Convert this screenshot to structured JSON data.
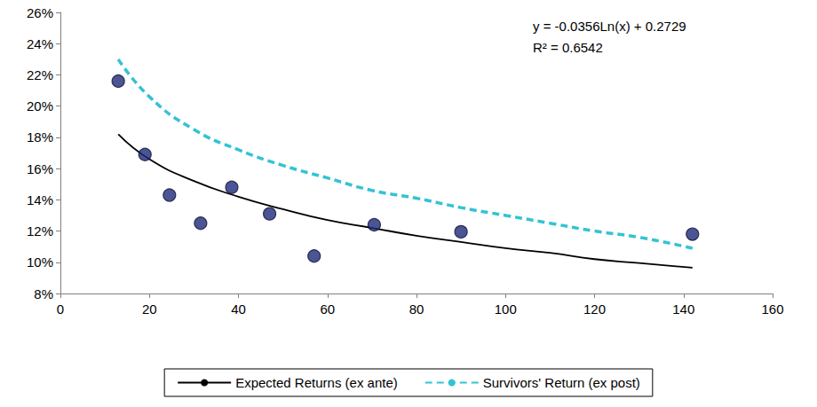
{
  "chart_data": {
    "type": "scatter",
    "annotations": [
      "y = -0.0356Ln(x) + 0.2729",
      "R² = 0.6542"
    ],
    "xlim": [
      0,
      160
    ],
    "xticks": [
      0,
      20,
      40,
      60,
      80,
      100,
      120,
      140,
      160
    ],
    "ylim": [
      8,
      26
    ],
    "yticks": [
      {
        "value": 8,
        "label": "8%"
      },
      {
        "value": 10,
        "label": "10%"
      },
      {
        "value": 12,
        "label": "12%"
      },
      {
        "value": 14,
        "label": "14%"
      },
      {
        "value": 16,
        "label": "16%"
      },
      {
        "value": 18,
        "label": "18%"
      },
      {
        "value": 20,
        "label": "20%"
      },
      {
        "value": 22,
        "label": "22%"
      },
      {
        "value": 24,
        "label": "24%"
      },
      {
        "value": 26,
        "label": "26%"
      }
    ],
    "grid": false,
    "legend": "bottom",
    "series": [
      {
        "type": "scatter",
        "color": "#1f2a78",
        "marker": "circle",
        "x": [
          13,
          19,
          24.5,
          31.5,
          38.5,
          47,
          57,
          70.5,
          90,
          142
        ],
        "values": [
          21.6,
          16.9,
          14.3,
          12.5,
          14.8,
          13.1,
          10.4,
          12.4,
          11.95,
          11.8
        ]
      },
      {
        "name": "Expected Returns (ex ante)",
        "type": "line",
        "color": "#000000",
        "line_style": "solid",
        "x": [
          13,
          20,
          30,
          40,
          50,
          60,
          70,
          80,
          90,
          100,
          110,
          120,
          130,
          142
        ],
        "values": [
          18.2,
          16.6,
          15.2,
          14.2,
          13.4,
          12.7,
          12.2,
          11.7,
          11.3,
          10.9,
          10.6,
          10.2,
          9.95,
          9.65
        ]
      },
      {
        "name": "Survivors' Return (ex post)",
        "type": "line",
        "color": "#33c3d3",
        "line_style": "dashed",
        "x": [
          13,
          20,
          30,
          40,
          50,
          60,
          70,
          80,
          90,
          100,
          110,
          120,
          130,
          142
        ],
        "values": [
          23.0,
          20.6,
          18.5,
          17.2,
          16.2,
          15.4,
          14.6,
          14.1,
          13.5,
          13.0,
          12.5,
          12.0,
          11.6,
          10.9
        ]
      }
    ]
  }
}
